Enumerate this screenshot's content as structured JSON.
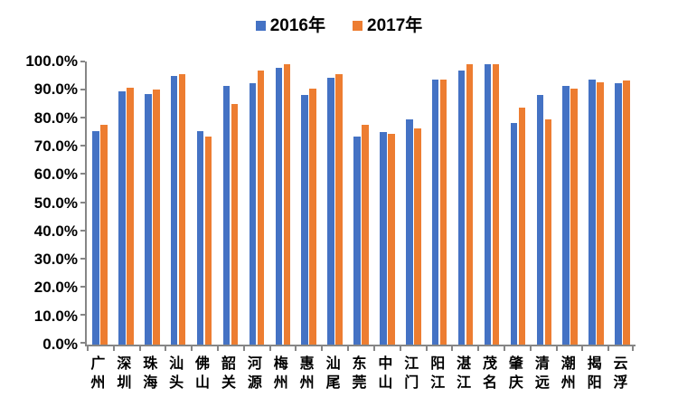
{
  "chart_data": {
    "type": "bar",
    "title": "",
    "xlabel": "",
    "ylabel": "",
    "categories": [
      "广州",
      "深圳",
      "珠海",
      "汕头",
      "佛山",
      "韶关",
      "河源",
      "梅州",
      "惠州",
      "汕尾",
      "东莞",
      "中山",
      "江门",
      "阳江",
      "湛江",
      "茂名",
      "肇庆",
      "清远",
      "潮州",
      "揭阳",
      "云浮"
    ],
    "series": [
      {
        "name": "2016年",
        "color": "#4472C4",
        "values": [
          76.0,
          90.0,
          89.0,
          95.5,
          76.0,
          92.0,
          93.0,
          98.5,
          88.8,
          95.0,
          73.8,
          75.7,
          80.0,
          94.2,
          97.3,
          99.8,
          78.8,
          88.8,
          92.0,
          94.2,
          93.0
        ]
      },
      {
        "name": "2017年",
        "color": "#ED7D31",
        "values": [
          78.2,
          91.2,
          90.7,
          96.3,
          73.8,
          85.5,
          97.5,
          99.8,
          91.0,
          96.3,
          78.2,
          74.9,
          77.0,
          94.2,
          99.7,
          99.8,
          84.3,
          80.2,
          91.0,
          93.3,
          94.0
        ]
      }
    ],
    "ylim": [
      0,
      100
    ],
    "ytick_labels": [
      "100.0%",
      "90.0%",
      "80.0%",
      "70.0%",
      "60.0%",
      "50.0%",
      "40.0%",
      "30.0%",
      "20.0%",
      "10.0%",
      "0.0%"
    ],
    "grid": false,
    "legend_position": "top-center",
    "axis_color": "#868686"
  }
}
